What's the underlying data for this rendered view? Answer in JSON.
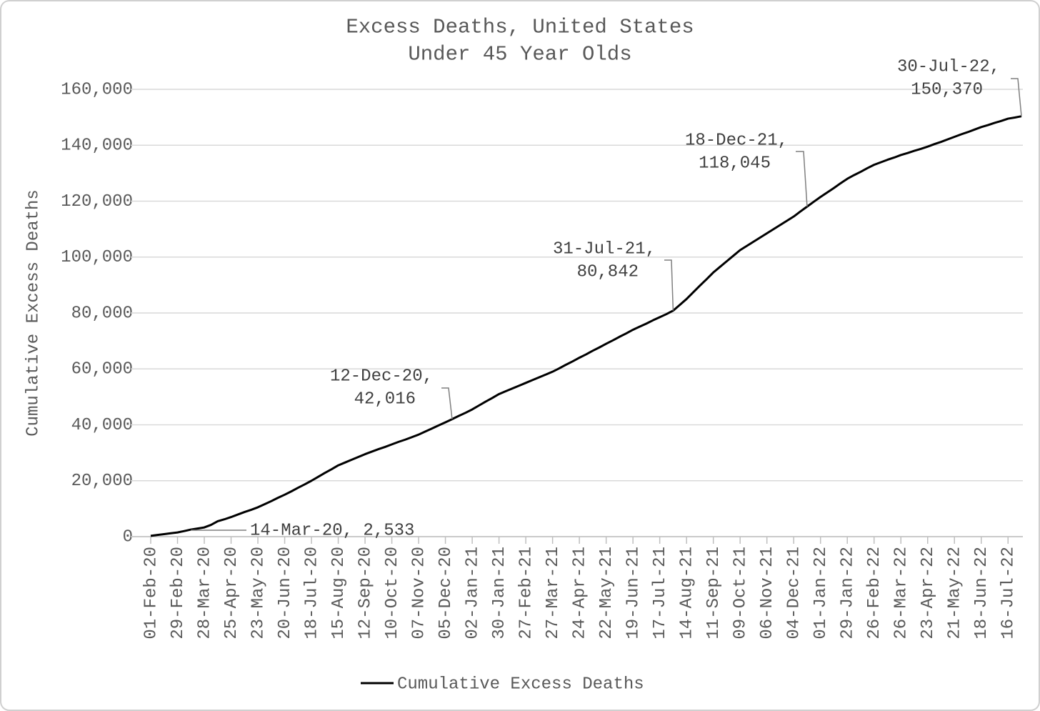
{
  "chart_data": {
    "type": "line",
    "title": [
      "Excess Deaths, United States",
      "Under 45 Year Olds"
    ],
    "y_label": "Cumulative Excess Deaths",
    "categories": [
      "01-Feb-20",
      null,
      null,
      null,
      "29-Feb-20",
      null,
      null,
      null,
      "28-Mar-20",
      null,
      null,
      null,
      "25-Apr-20",
      null,
      null,
      null,
      "23-May-20",
      null,
      null,
      null,
      "20-Jun-20",
      null,
      null,
      null,
      "18-Jul-20",
      null,
      null,
      null,
      "15-Aug-20",
      null,
      null,
      null,
      "12-Sep-20",
      null,
      null,
      null,
      "10-Oct-20",
      null,
      null,
      null,
      "07-Nov-20",
      null,
      null,
      null,
      "05-Dec-20",
      null,
      null,
      null,
      "02-Jan-21",
      null,
      null,
      null,
      "30-Jan-21",
      null,
      null,
      null,
      "27-Feb-21",
      null,
      null,
      null,
      "27-Mar-21",
      null,
      null,
      null,
      "24-Apr-21",
      null,
      null,
      null,
      "22-May-21",
      null,
      null,
      null,
      "19-Jun-21",
      null,
      null,
      null,
      "17-Jul-21",
      null,
      null,
      null,
      "14-Aug-21",
      null,
      null,
      null,
      "11-Sep-21",
      null,
      null,
      null,
      "09-Oct-21",
      null,
      null,
      null,
      "06-Nov-21",
      null,
      null,
      null,
      "04-Dec-21",
      null,
      null,
      null,
      "01-Jan-22",
      null,
      null,
      null,
      "29-Jan-22",
      null,
      null,
      null,
      "26-Feb-22",
      null,
      null,
      null,
      "26-Mar-22",
      null,
      null,
      null,
      "23-Apr-22",
      null,
      null,
      null,
      "21-May-22",
      null,
      null,
      null,
      "18-Jun-22",
      null,
      null,
      null,
      "16-Jul-22",
      null,
      null
    ],
    "series": [
      {
        "name": "Cumulative Excess Deaths",
        "color": "#000000",
        "values": [
          300,
          600,
          900,
          1200,
          1500,
          2000,
          2533,
          2900,
          3300,
          4200,
          5500,
          6200,
          7000,
          7900,
          8800,
          9600,
          10500,
          11600,
          12700,
          13900,
          15000,
          16200,
          17500,
          18700,
          20000,
          21400,
          22800,
          24100,
          25500,
          26500,
          27500,
          28500,
          29500,
          30400,
          31300,
          32100,
          33000,
          33900,
          34700,
          35600,
          36500,
          37600,
          38700,
          39800,
          40900,
          42016,
          43200,
          44300,
          45500,
          46900,
          48300,
          49600,
          51000,
          52000,
          53000,
          54000,
          55000,
          56000,
          57000,
          58000,
          59000,
          60200,
          61500,
          62700,
          64000,
          65200,
          66500,
          67700,
          69000,
          70200,
          71500,
          72700,
          74000,
          75100,
          76200,
          77400,
          78500,
          79600,
          80842,
          82900,
          85000,
          87400,
          89800,
          92100,
          94500,
          96500,
          98500,
          100500,
          102500,
          104000,
          105500,
          107000,
          108500,
          110000,
          111500,
          113000,
          114500,
          116300,
          118045,
          119800,
          121500,
          123100,
          124700,
          126400,
          128000,
          129300,
          130500,
          131800,
          133000,
          133900,
          134800,
          135600,
          136500,
          137200,
          138000,
          138700,
          139500,
          140400,
          141200,
          142100,
          143000,
          143900,
          144700,
          145600,
          146500,
          147200,
          148000,
          148700,
          149500,
          149900,
          150370
        ]
      }
    ],
    "annotations": [
      {
        "lines": [
          "14-Mar-20, 2,533"
        ]
      },
      {
        "lines": [
          "12-Dec-20,",
          "42,016"
        ]
      },
      {
        "lines": [
          "31-Jul-21,",
          "80,842"
        ]
      },
      {
        "lines": [
          "18-Dec-21,",
          "118,045"
        ]
      },
      {
        "lines": [
          "30-Jul-22,",
          "150,370"
        ]
      }
    ],
    "ylim": [
      0,
      160000
    ],
    "yticks": [
      0,
      {
        "value": 20000,
        "label": "20,000"
      },
      {
        "value": 40000,
        "label": "40,000"
      },
      {
        "value": 60000,
        "label": "60,000"
      },
      {
        "value": 80000,
        "label": "80,000"
      },
      {
        "value": 100000,
        "label": "100,000"
      },
      {
        "value": 120000,
        "label": "120,000"
      },
      {
        "value": 140000,
        "label": "140,000"
      },
      {
        "value": 160000,
        "label": "160,000"
      }
    ],
    "grid": true,
    "legend": "bottom"
  }
}
